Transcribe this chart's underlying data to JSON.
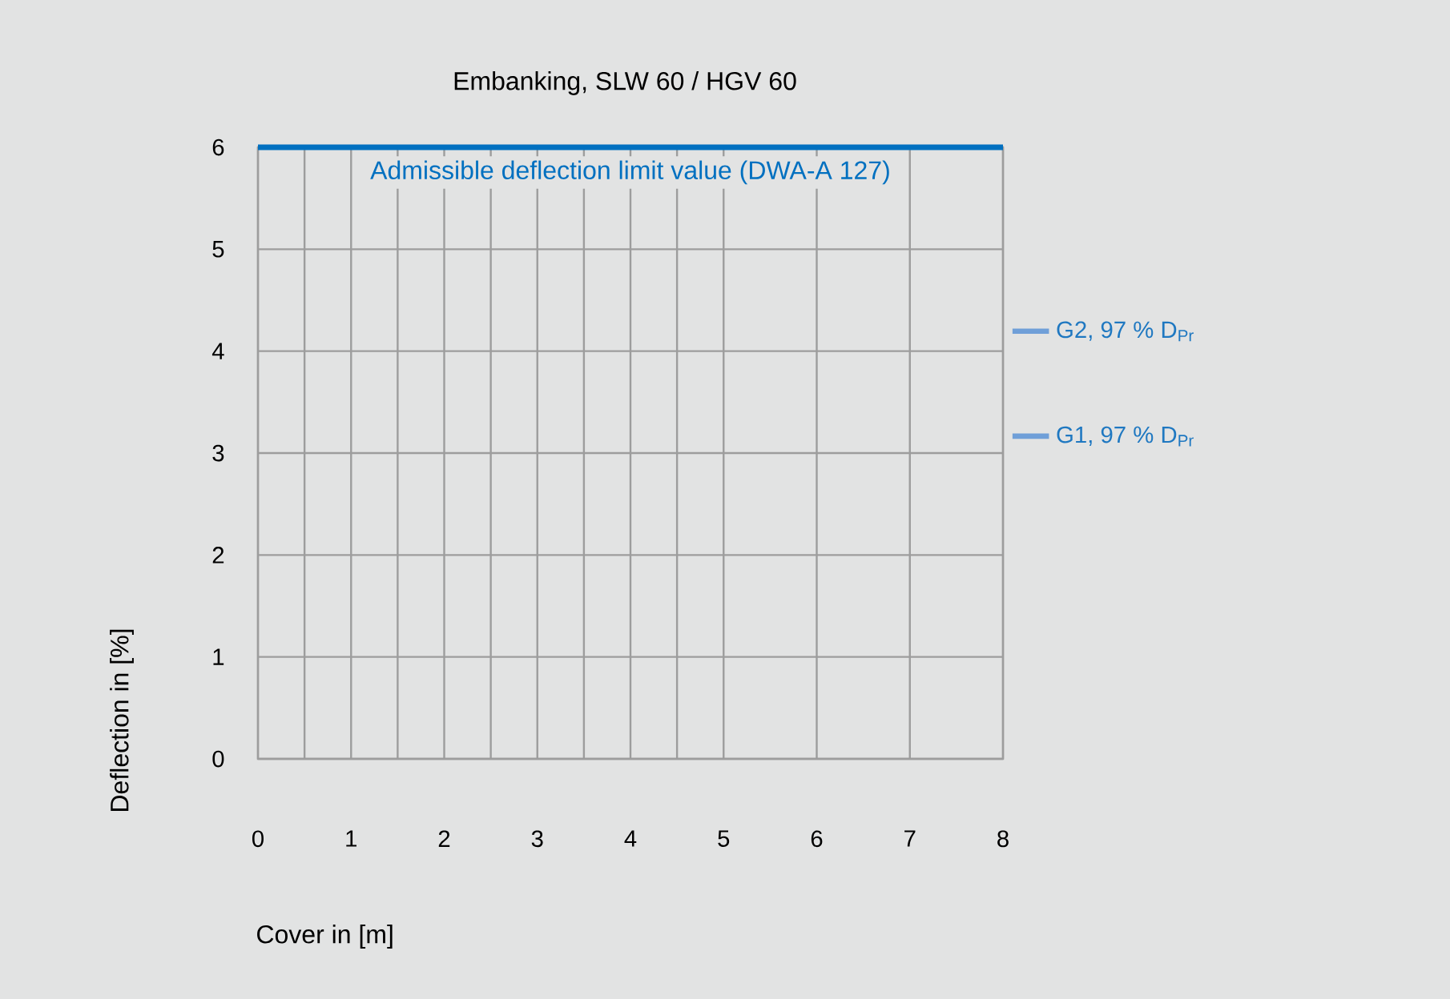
{
  "chart_data": {
    "type": "line",
    "title": "Embanking, SLW 60 / HGV 60",
    "xlabel": "Cover in [m]",
    "ylabel": "Deflection in [%]",
    "series": [
      {
        "name": "Admissible deflection limit value (DWA-A 127)",
        "color": "#0070c0",
        "x": [
          0,
          8
        ],
        "values": [
          6,
          6
        ]
      },
      {
        "name": "G2, 97 % D$_{Pr}$",
        "color": "#6f9fd8"
      },
      {
        "name": "G1, 97 % D$_{Pr}$",
        "color": "#6f9fd8"
      }
    ],
    "xlim": [
      0,
      8
    ],
    "ylim": [
      0,
      6
    ],
    "xticks": [
      0,
      {
        "value": 0.5,
        "label": null
      },
      1,
      {
        "value": 1.5,
        "label": null
      },
      2,
      {
        "value": 2.5,
        "label": null
      },
      3,
      {
        "value": 3.5,
        "label": null
      },
      4,
      {
        "value": 4.5,
        "label": null
      },
      5,
      6,
      7,
      8
    ],
    "yticks": [
      0,
      1,
      2,
      3,
      4,
      5,
      6
    ],
    "grid": true,
    "legend": "right"
  }
}
